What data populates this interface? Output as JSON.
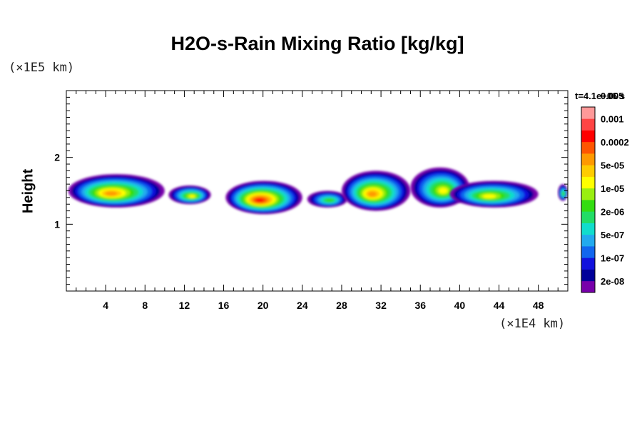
{
  "chart_data": {
    "type": "heatmap",
    "title": "H2O-s-Rain Mixing Ratio [kg/kg]",
    "ylabel": "Height",
    "xlabel": "",
    "x_unit": "(×1E4 km)",
    "y_unit": "(×1E5 km)",
    "time_label": "t=4.1e+06 s",
    "xlim": [
      0,
      51
    ],
    "ylim": [
      0,
      3
    ],
    "x_ticks": [
      4,
      8,
      12,
      16,
      20,
      24,
      28,
      32,
      36,
      40,
      44,
      48
    ],
    "y_ticks": [
      1,
      2
    ],
    "colorbar": {
      "levels": [
        "2e-08",
        "1e-07",
        "5e-07",
        "2e-06",
        "1e-05",
        "5e-05",
        "0.0002",
        "0.001",
        "0.005"
      ],
      "colors": [
        "#7700aa",
        "#000099",
        "#1111dd",
        "#1166ee",
        "#22aaee",
        "#11ddcc",
        "#22dd66",
        "#33dd11",
        "#99ee11",
        "#ffff00",
        "#ffcc00",
        "#ff9900",
        "#ff5500",
        "#ff0000",
        "#ff4444",
        "#ff9999"
      ]
    },
    "regions": [
      {
        "x": [
          0.2,
          10.0
        ],
        "y": [
          1.25,
          1.75
        ],
        "peak": "5e-05"
      },
      {
        "x": [
          10.4,
          14.7
        ],
        "y": [
          1.3,
          1.58
        ],
        "peak": "1e-05"
      },
      {
        "x": [
          16.2,
          24.0
        ],
        "y": [
          1.15,
          1.65
        ],
        "peak": "0.0002"
      },
      {
        "x": [
          24.5,
          28.6
        ],
        "y": [
          1.25,
          1.5
        ],
        "peak": "2e-06"
      },
      {
        "x": [
          28.0,
          35.0
        ],
        "y": [
          1.2,
          1.8
        ],
        "peak": "5e-05"
      },
      {
        "x": [
          35.0,
          41.0
        ],
        "y": [
          1.25,
          1.85
        ],
        "peak": "1e-05"
      },
      {
        "x": [
          39.0,
          48.0
        ],
        "y": [
          1.25,
          1.65
        ],
        "peak": "1e-05"
      },
      {
        "x": [
          50.0,
          51.0
        ],
        "y": [
          1.35,
          1.6
        ],
        "peak": "2e-06"
      }
    ]
  }
}
